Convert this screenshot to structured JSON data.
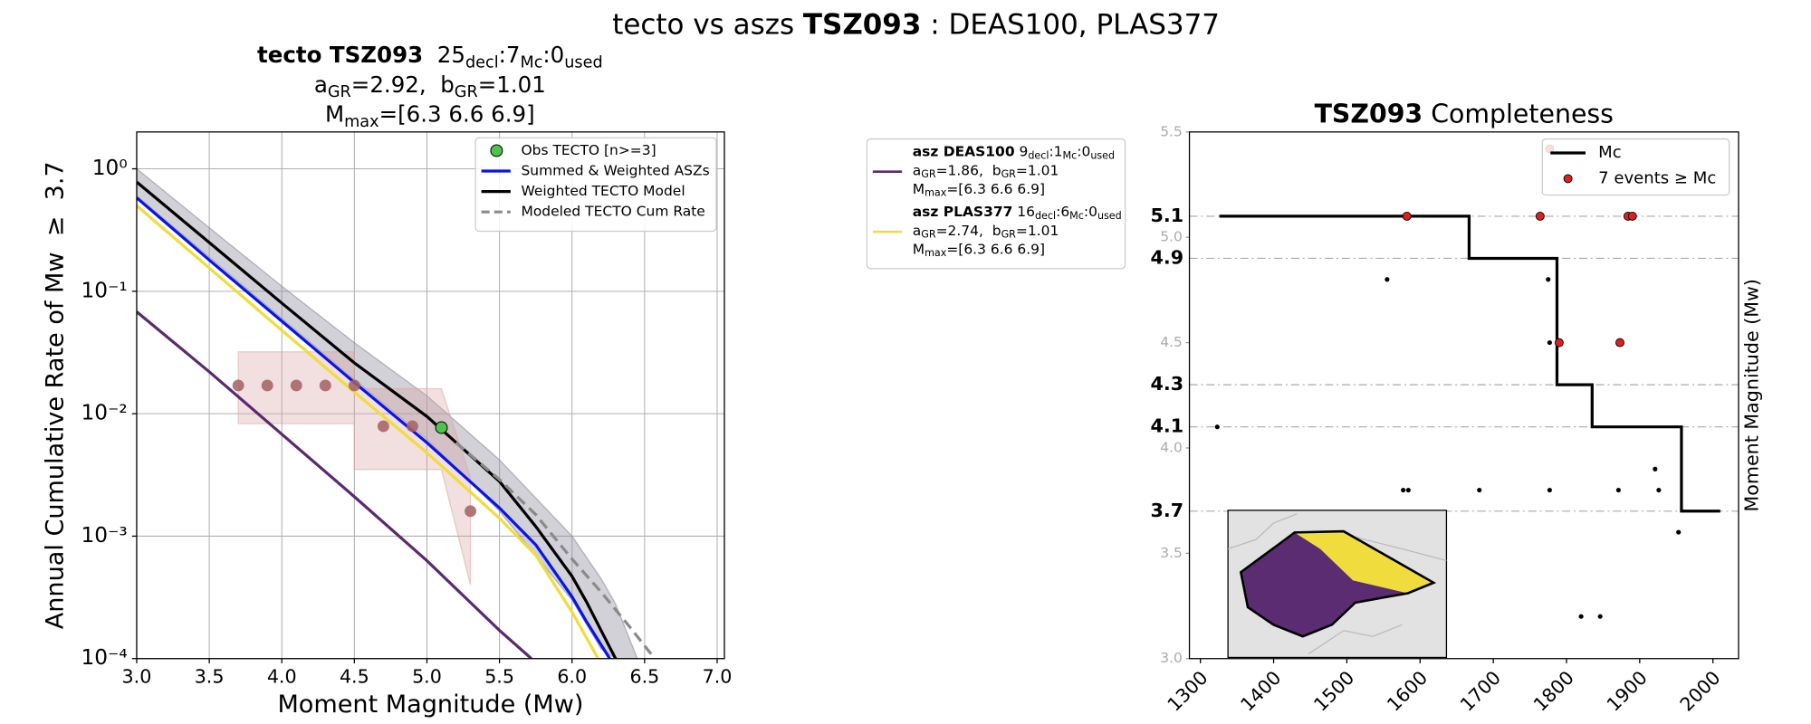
{
  "title": [
    {
      "text": "tecto vs aszs "
    },
    {
      "text": "TSZ093",
      "bold": true
    },
    {
      "text": " : DEAS100, PLAS377"
    }
  ],
  "chart_data": [
    {
      "type": "line",
      "title_lines": [
        [
          {
            "text": "tecto TSZ093",
            "bold": true
          },
          {
            "text": "  25"
          },
          {
            "text": "decl",
            "sub": true
          },
          {
            "text": ":7"
          },
          {
            "text": "Mc",
            "sub": true
          },
          {
            "text": ":0"
          },
          {
            "text": "used",
            "sub": true
          }
        ],
        [
          {
            "text": "a"
          },
          {
            "text": "GR",
            "sub": true
          },
          {
            "text": "=2.92,  b"
          },
          {
            "text": "GR",
            "sub": true
          },
          {
            "text": "=1.01"
          }
        ],
        [
          {
            "text": "M"
          },
          {
            "text": "max",
            "sub": true
          },
          {
            "text": "=[6.3 6.6 6.9]"
          }
        ]
      ],
      "xlabel": "Moment Magnitude (Mw)",
      "ylabel": "Annual Cumulative Rate of Mw  ≥  3.7",
      "xlim": [
        3,
        7.05
      ],
      "ylim": [
        0.0001,
        2
      ],
      "log_y": true,
      "grid": true,
      "legend": "upper right",
      "xticks": [
        {
          "value": 3,
          "label": "3.0"
        },
        3.5,
        {
          "value": 4,
          "label": "4.0"
        },
        4.5,
        {
          "value": 5,
          "label": "5.0"
        },
        5.5,
        {
          "value": 6,
          "label": "6.0"
        },
        6.5,
        {
          "value": 7,
          "label": "7.0"
        }
      ],
      "yticks": [
        {
          "value": 0.0001,
          "label": "10⁻⁴"
        },
        {
          "value": 0.001,
          "label": "10⁻³"
        },
        {
          "value": 0.01,
          "label": "10⁻²"
        },
        {
          "value": 0.1,
          "label": "10⁻¹"
        },
        {
          "value": 1,
          "label": "10⁰"
        }
      ],
      "band": {
        "color": "#8c8c9c",
        "x": [
          3,
          3.5,
          4,
          4.5,
          5,
          5.5,
          6,
          6.2,
          6.3,
          6.45
        ],
        "lower": [
          0.6,
          0.19,
          0.06,
          0.019,
          0.0062,
          0.0016,
          0.0003,
          0.00012,
          0.0001,
          0.0001
        ],
        "upper": [
          1.0,
          0.33,
          0.11,
          0.038,
          0.014,
          0.0042,
          0.001,
          0.00045,
          0.00028,
          0.0001
        ]
      },
      "obs_band": {
        "color": "#d9a3a3",
        "x": [
          3.7,
          4.5,
          4.5,
          5.1,
          5.3
        ],
        "lower": [
          0.0083,
          0.0083,
          0.0035,
          0.0035,
          0.0004
        ],
        "upper": [
          0.032,
          0.032,
          0.016,
          0.016,
          0.003
        ]
      },
      "series": [
        {
          "name": "Obs TECTO [n>=3]",
          "marker": true,
          "color": "#4cc44c",
          "x": [
            5.1
          ],
          "values": [
            0.0077
          ]
        },
        {
          "name": "Summed & Weighted ASZs",
          "color": "#0a14e6",
          "x": [
            3,
            3.5,
            4,
            4.5,
            5,
            5.5,
            5.75,
            6,
            6.1,
            6.26
          ],
          "values": [
            0.58,
            0.18,
            0.057,
            0.018,
            0.0058,
            0.0017,
            0.00085,
            0.00032,
            0.0002,
            0.0001
          ]
        },
        {
          "name": "Weighted TECTO Model",
          "color": "#000000",
          "x": [
            3,
            3.5,
            4,
            4.5,
            5,
            5.5,
            5.75,
            6,
            6.1,
            6.2,
            6.3
          ],
          "values": [
            0.78,
            0.25,
            0.08,
            0.026,
            0.0095,
            0.0028,
            0.0012,
            0.00047,
            0.00029,
            0.00017,
            0.0001
          ]
        },
        {
          "name": "Modeled TECTO Cum Rate",
          "dashed": true,
          "color": "#8a8a8a",
          "x": [
            5.2,
            5.5,
            5.75,
            6,
            6.2,
            6.4,
            6.57
          ],
          "values": [
            0.0058,
            0.0029,
            0.0015,
            0.00065,
            0.00035,
            0.00018,
            0.0001
          ]
        },
        {
          "name": "asz DEAS100",
          "color": "#5b2a6e",
          "x": [
            3,
            3.5,
            4,
            4.5,
            5,
            5.5,
            5.72
          ],
          "values": [
            0.068,
            0.022,
            0.0068,
            0.0021,
            0.00063,
            0.00017,
            0.0001
          ],
          "details": [
            [
              {
                "text": " 9"
              },
              {
                "text": "decl",
                "sub": true
              },
              {
                "text": ":1"
              },
              {
                "text": "Mc",
                "sub": true
              },
              {
                "text": ":0"
              },
              {
                "text": "used",
                "sub": true
              }
            ],
            [
              {
                "text": "a"
              },
              {
                "text": "GR",
                "sub": true
              },
              {
                "text": "=1.86,  b"
              },
              {
                "text": "GR",
                "sub": true
              },
              {
                "text": "=1.01"
              }
            ],
            [
              {
                "text": "M"
              },
              {
                "text": "max",
                "sub": true
              },
              {
                "text": "=[6.3 6.6 6.9]"
              }
            ]
          ]
        },
        {
          "name": "asz PLAS377",
          "color": "#f0dc3c",
          "x": [
            3,
            3.5,
            4,
            4.5,
            5,
            5.5,
            5.75,
            6,
            6.18
          ],
          "values": [
            0.5,
            0.155,
            0.048,
            0.015,
            0.0048,
            0.0014,
            0.0007,
            0.00024,
            0.0001
          ],
          "details": [
            [
              {
                "text": " 16"
              },
              {
                "text": "decl",
                "sub": true
              },
              {
                "text": ":6"
              },
              {
                "text": "Mc",
                "sub": true
              },
              {
                "text": ":0"
              },
              {
                "text": "used",
                "sub": true
              }
            ],
            [
              {
                "text": "a"
              },
              {
                "text": "GR",
                "sub": true
              },
              {
                "text": "=2.74,  b"
              },
              {
                "text": "GR",
                "sub": true
              },
              {
                "text": "=1.01"
              }
            ],
            [
              {
                "text": "M"
              },
              {
                "text": "max",
                "sub": true
              },
              {
                "text": "=[6.3 6.6 6.9]"
              }
            ]
          ]
        },
        {
          "marker": true,
          "color": "#a46060",
          "x": [
            3.7,
            3.9,
            4.1,
            4.3,
            4.5,
            4.7,
            4.9,
            5.3
          ],
          "values": [
            0.017,
            0.017,
            0.017,
            0.017,
            0.017,
            0.0079,
            0.0079,
            0.0016
          ]
        }
      ]
    },
    {
      "type": "scatter",
      "title": [
        {
          "text": "TSZ093",
          "bold": true
        },
        {
          "text": " Completeness"
        }
      ],
      "xlabel": "Year",
      "ylabel": "Moment Magnitude (Mw)",
      "xlim": [
        1285,
        2035
      ],
      "ylim": [
        3.0,
        5.5
      ],
      "legend": "upper right",
      "xticks": [
        1300,
        1400,
        1500,
        1600,
        1700,
        1800,
        1900,
        2000
      ],
      "yticks": [
        {
          "value": 3,
          "label": "3.0"
        },
        3.5,
        {
          "value": 4,
          "label": "4.0"
        },
        4.5,
        {
          "value": 5,
          "label": "5.0"
        },
        5.5
      ],
      "mc_ticks": [
        3.7,
        4.1,
        4.3,
        4.9,
        5.1
      ],
      "series": [
        {
          "name": "Mc",
          "type": "line",
          "color": "#000000",
          "x": [
            1326,
            1667,
            1667,
            1787,
            1787,
            1835,
            1835,
            1957,
            1957,
            2010
          ],
          "values": [
            5.1,
            5.1,
            4.9,
            4.9,
            4.3,
            4.3,
            4.1,
            4.1,
            3.7,
            3.7
          ]
        },
        {
          "name": "7 events ≥ Mc",
          "color": "#e02020",
          "x": [
            1582,
            1764,
            1884,
            1890,
            1790,
            1873,
            1777
          ],
          "values": [
            5.1,
            5.1,
            5.1,
            5.1,
            4.5,
            4.5,
            5.42
          ]
        },
        {
          "color": "#000000",
          "x": [
            1323,
            1555,
            1577,
            1584,
            1681,
            1775,
            1777,
            1777,
            1871,
            1921,
            1926,
            1953,
            1820,
            1846
          ],
          "values": [
            4.1,
            4.8,
            3.8,
            3.8,
            3.8,
            4.8,
            4.5,
            3.8,
            3.8,
            3.9,
            3.8,
            3.6,
            3.2,
            3.2
          ]
        }
      ]
    }
  ]
}
